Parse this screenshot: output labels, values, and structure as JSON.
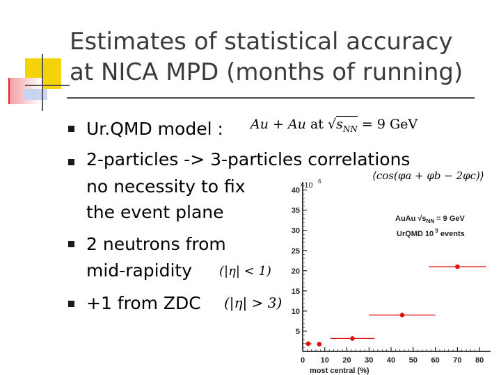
{
  "slide": {
    "title_line1": "Estimates of statistical accuracy",
    "title_line2": "at NICA MPD (months of running)",
    "colors": {
      "title": "#3b3b3b",
      "accent_yellow": "#f5d20a",
      "accent_red": "#e0202c",
      "accent_blue": "#3a5fc8",
      "marker": "#e01010"
    },
    "bullets": [
      {
        "text": "Ur.QMD model :"
      },
      {
        "text": "2-particles -> 3-particles correlations"
      },
      {
        "text": "no   necessity to fix"
      },
      {
        "text": "the event plane"
      },
      {
        "text": "2 neutrons from"
      },
      {
        "text": "mid-rapidity"
      },
      {
        "text": "+1  from ZDC"
      }
    ],
    "formulas": {
      "collision": "Au + Au at √s_NN = 9 GeV",
      "collision_a": "Au + Au",
      "collision_at": "at",
      "collision_sqrt": "s",
      "collision_sub": "NN",
      "collision_b": "= 9 GeV",
      "correlator": "⟨cos(φ_a + φ_b − 2φ_c)⟩",
      "correlator_text": "⟨cos(φa + φb − 2φc)⟩",
      "eta_mid": "(|η| < 1)",
      "eta_zdc": "(|η| > 3)"
    }
  },
  "chart_data": {
    "type": "scatter",
    "title": "",
    "xlabel": "most central (%)",
    "ylabel": "",
    "y_multiplier": "×10",
    "y_multiplier_exp": "6",
    "xlim": [
      0,
      85
    ],
    "ylim": [
      0,
      42
    ],
    "x_ticks": [
      "0",
      "10",
      "20",
      "30",
      "40",
      "50",
      "60",
      "70",
      "80"
    ],
    "y_ticks": [
      "5",
      "10",
      "15",
      "20",
      "25",
      "30",
      "35",
      "40"
    ],
    "annotations": {
      "line1_a": "AuAu",
      "line1_sqrt": "s",
      "line1_sub": "NN",
      "line1_b": "= 9 GeV",
      "line2_a": "UrQMD 10",
      "line2_exp": "9",
      "line2_b": "events"
    },
    "points": [
      {
        "x": 2.5,
        "y": 1.9,
        "xerr": 1.5
      },
      {
        "x": 7.5,
        "y": 1.8,
        "xerr": 0
      },
      {
        "x": 22.5,
        "y": 3.2,
        "xerr": 10
      },
      {
        "x": 45,
        "y": 9.0,
        "xerr": 15
      },
      {
        "x": 70,
        "y": 21.0,
        "xerr": 13
      }
    ]
  }
}
